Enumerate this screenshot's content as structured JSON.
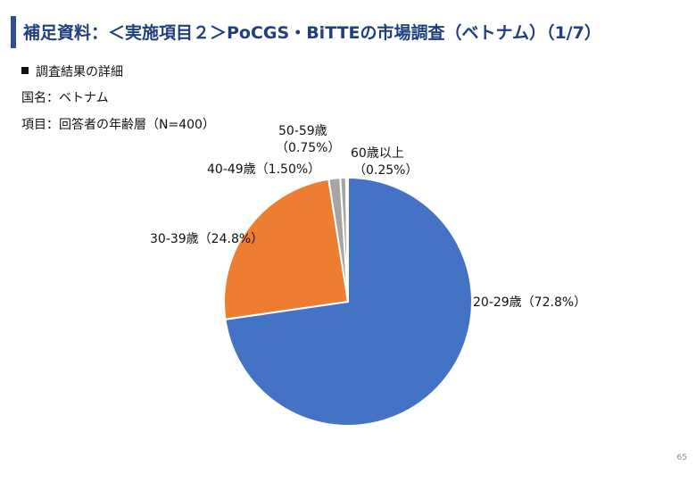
{
  "header": {
    "title": "補足資料：＜実施項目２＞PoCGS・BiTTEの市場調査（ベトナム）（1/7）"
  },
  "info": {
    "section": "調査結果の詳細",
    "country": "国名：ベトナム",
    "item": "項目：回答者の年齢層（N=400）"
  },
  "page_number": "65",
  "colors": {
    "title": "#1f3f7f",
    "accent_bar": "#2f4f8f",
    "slice_20_29": "#4472c4",
    "slice_30_39": "#ed7d31",
    "slice_40_49": "#a5a5a5",
    "slice_50_59": "#a5a5a5",
    "slice_60_plus": "#ffc000"
  },
  "chart_data": {
    "type": "pie",
    "title": "",
    "slices": [
      {
        "label": "20-29歳",
        "value": 72.8,
        "display": "20-29歳（72.8%）",
        "color": "#4472c4"
      },
      {
        "label": "30-39歳",
        "value": 24.8,
        "display": "30-39歳（24.8%）",
        "color": "#ed7d31"
      },
      {
        "label": "40-49歳",
        "value": 1.5,
        "display": "40-49歳（1.50%）",
        "color": "#a5a5a5"
      },
      {
        "label": "50-59歳",
        "value": 0.75,
        "display_line1": "50-59歳",
        "display_line2": "（0.75%）",
        "color": "#a5a5a5"
      },
      {
        "label": "60歳以上",
        "value": 0.25,
        "display_line1": "60歳以上",
        "display_line2": "（0.25%）",
        "color": "#ffc000"
      }
    ]
  }
}
